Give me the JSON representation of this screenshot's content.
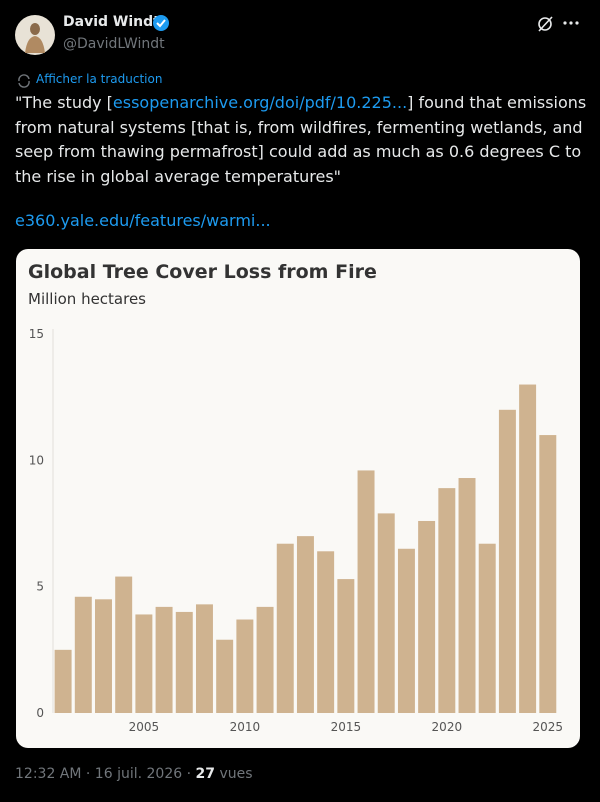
{
  "tweet": {
    "author_name": "David Windt",
    "author_handle": "@DavidLWindt",
    "translate": "Afficher la traduction",
    "text_before_link": "\"The study [",
    "inline_link": "essopenarchive.org/doi/pdf/10.225...",
    "text_after_link": "] found that emissions from natural systems [that is, from wildfires, fermenting wetlands, and seep from thawing permafrost] could add as much as 0.6 degrees C to the rise in global average temperatures\"",
    "link": "e360.yale.edu/features/warmi...",
    "timestamp": "12:32 AM · 16 juil. 2026 ·",
    "views": "27",
    "views_label": "vues"
  },
  "chart_data": {
    "type": "bar",
    "title": "Global Tree Cover Loss from Fire",
    "subtitle": "Million hectares",
    "x": [
      2001,
      2002,
      2003,
      2004,
      2005,
      2006,
      2007,
      2008,
      2009,
      2010,
      2011,
      2012,
      2013,
      2014,
      2015,
      2016,
      2017,
      2018,
      2019,
      2020,
      2021,
      2022,
      2023,
      2024,
      2025
    ],
    "values": [
      2.5,
      4.6,
      4.5,
      5.4,
      3.9,
      4.2,
      4.0,
      4.3,
      2.9,
      3.7,
      4.2,
      6.7,
      7.0,
      6.4,
      5.3,
      9.6,
      7.9,
      6.5,
      7.6,
      8.9,
      9.3,
      6.7,
      12.0,
      13.0,
      11.0
    ],
    "color": "#cfb390",
    "xlim": [
      2000.5,
      2026
    ],
    "xticks": [
      2005,
      2010,
      2015,
      2020,
      2025
    ],
    "ylim": [
      0,
      15
    ],
    "yticks": [
      0,
      5,
      10,
      15
    ],
    "grid": false
  }
}
